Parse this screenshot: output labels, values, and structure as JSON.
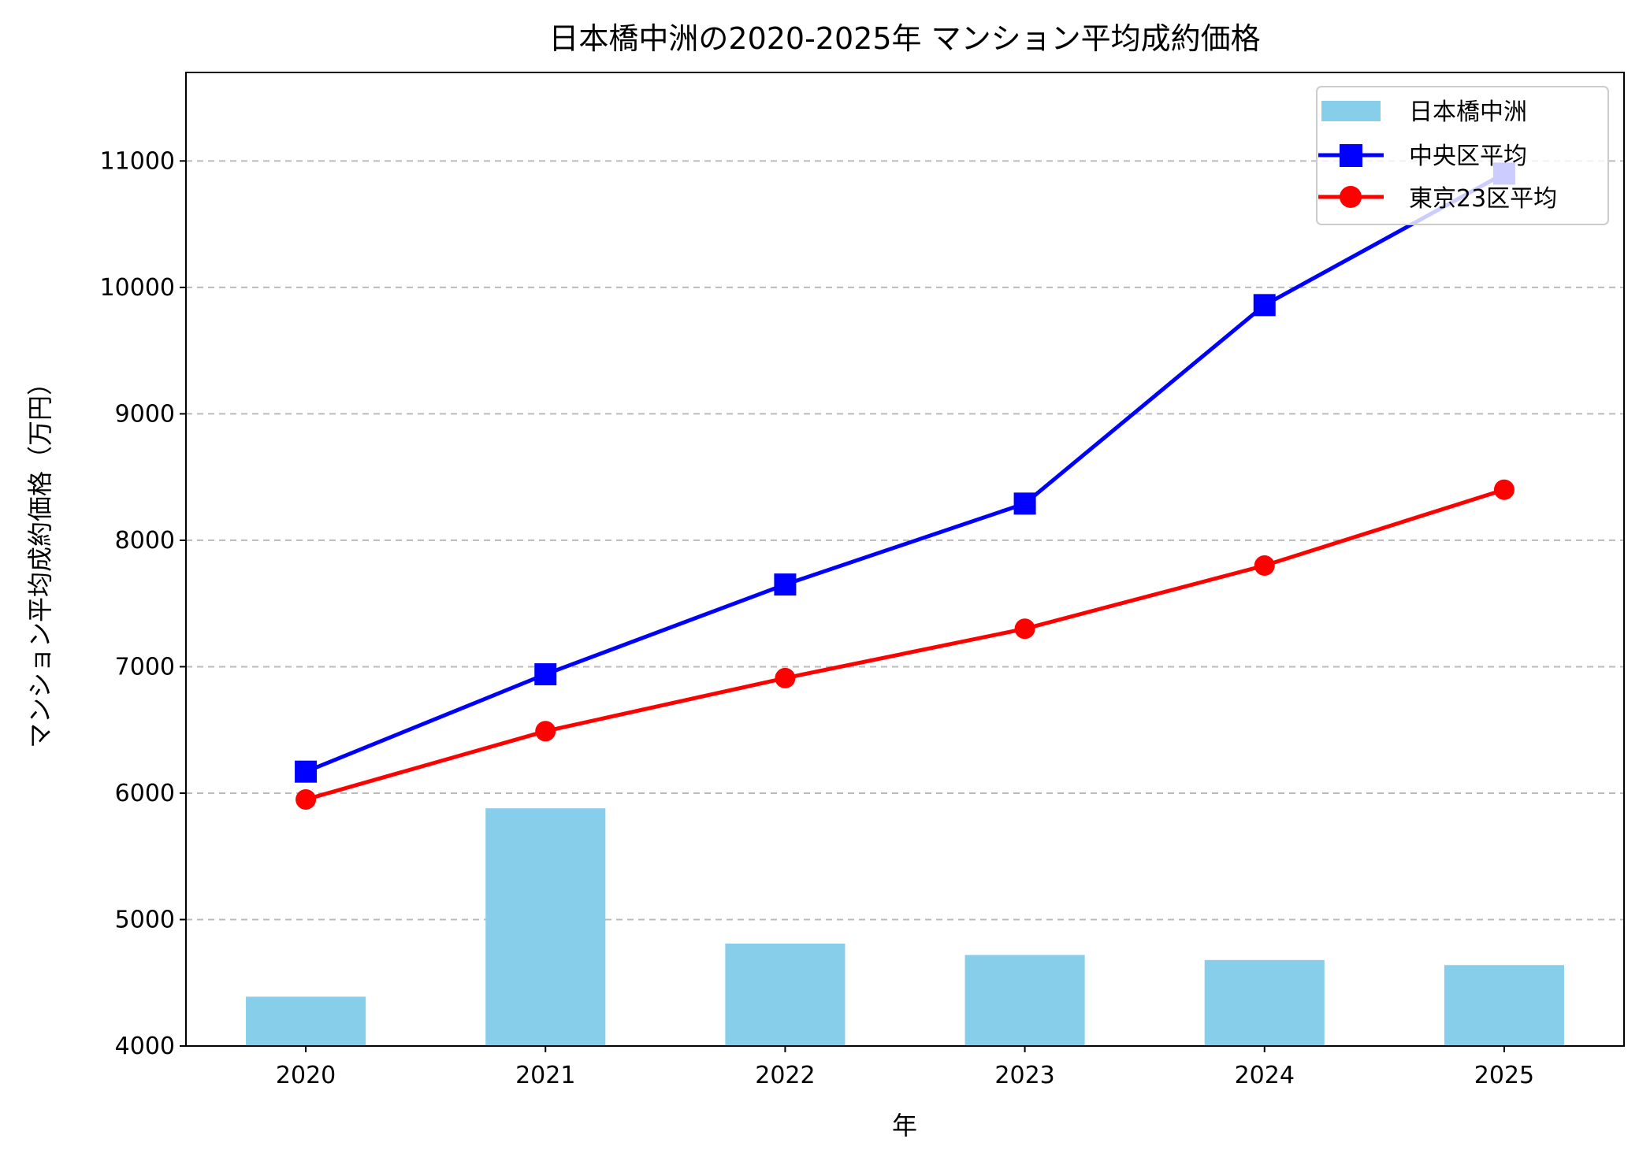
{
  "chart_data": {
    "type": "bar+line",
    "title": "日本橋中洲の2020-2025年 マンション平均成約価格",
    "xlabel": "年",
    "ylabel": "マンション平均成約価格（万円）",
    "categories": [
      "2020",
      "2021",
      "2022",
      "2023",
      "2024",
      "2025"
    ],
    "ylim": [
      4000,
      11700
    ],
    "yticks": [
      4000,
      5000,
      6000,
      7000,
      8000,
      9000,
      10000,
      11000
    ],
    "grid": "y, dashed",
    "legend": "top-right",
    "series": [
      {
        "name": "日本橋中洲",
        "kind": "bar",
        "color": "#87CEEB",
        "values": [
          4390,
          5880,
          4810,
          4720,
          4680,
          4640
        ]
      },
      {
        "name": "中央区平均",
        "kind": "line",
        "marker": "square",
        "color": "#0000FF",
        "values": [
          6170,
          6940,
          7650,
          8290,
          9860,
          10900
        ]
      },
      {
        "name": "東京23区平均",
        "kind": "line",
        "marker": "circle",
        "color": "#FF0000",
        "values": [
          5950,
          6490,
          6910,
          7300,
          7800,
          8400
        ]
      }
    ]
  }
}
